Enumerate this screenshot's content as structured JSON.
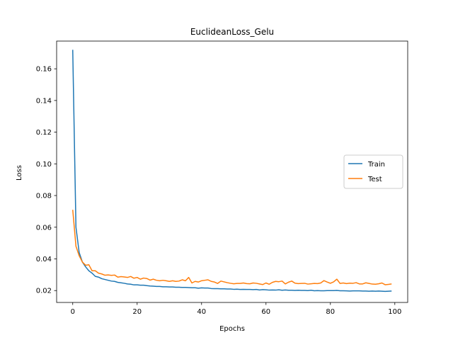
{
  "chart_data": {
    "type": "line",
    "title": "EuclideanLoss_Gelu",
    "xlabel": "Epochs",
    "ylabel": "Loss",
    "xlim": [
      -5,
      104
    ],
    "ylim": [
      0.0125,
      0.1775
    ],
    "xticks": [
      0,
      20,
      40,
      60,
      80,
      100
    ],
    "yticks": [
      0.02,
      0.04,
      0.06,
      0.08,
      0.1,
      0.12,
      0.14,
      0.16
    ],
    "ytick_labels": [
      "0.02",
      "0.04",
      "0.06",
      "0.08",
      "0.10",
      "0.12",
      "0.14",
      "0.16"
    ],
    "grid": false,
    "legend_position": "center-right",
    "series": [
      {
        "name": "Train",
        "color": "#1f77b4",
        "x": [
          0,
          1,
          2,
          3,
          4,
          5,
          6,
          7,
          8,
          9,
          10,
          11,
          12,
          13,
          14,
          15,
          16,
          17,
          18,
          19,
          20,
          21,
          22,
          23,
          24,
          25,
          26,
          27,
          28,
          29,
          30,
          31,
          32,
          33,
          34,
          35,
          36,
          37,
          38,
          39,
          40,
          41,
          42,
          43,
          44,
          45,
          46,
          47,
          48,
          49,
          50,
          51,
          52,
          53,
          54,
          55,
          56,
          57,
          58,
          59,
          60,
          61,
          62,
          63,
          64,
          65,
          66,
          67,
          68,
          69,
          70,
          71,
          72,
          73,
          74,
          75,
          76,
          77,
          78,
          79,
          80,
          81,
          82,
          83,
          84,
          85,
          86,
          87,
          88,
          89,
          90,
          91,
          92,
          93,
          94,
          95,
          96,
          97,
          98,
          99
        ],
        "values": [
          0.172,
          0.06,
          0.044,
          0.038,
          0.035,
          0.0325,
          0.031,
          0.029,
          0.0285,
          0.0275,
          0.027,
          0.0265,
          0.026,
          0.0258,
          0.0252,
          0.0249,
          0.0246,
          0.0242,
          0.024,
          0.0236,
          0.0236,
          0.0234,
          0.0234,
          0.0231,
          0.0229,
          0.0228,
          0.0226,
          0.0226,
          0.0224,
          0.0224,
          0.0223,
          0.0223,
          0.0221,
          0.0221,
          0.022,
          0.022,
          0.0219,
          0.0218,
          0.0218,
          0.0215,
          0.0217,
          0.0216,
          0.0216,
          0.0213,
          0.0212,
          0.0212,
          0.0211,
          0.0211,
          0.021,
          0.021,
          0.0208,
          0.0209,
          0.0207,
          0.0208,
          0.0207,
          0.0207,
          0.0206,
          0.0207,
          0.0204,
          0.0206,
          0.0205,
          0.0203,
          0.0204,
          0.0203,
          0.0205,
          0.0202,
          0.0204,
          0.0202,
          0.0202,
          0.0201,
          0.0202,
          0.0201,
          0.0201,
          0.02,
          0.0202,
          0.0199,
          0.02,
          0.0199,
          0.0199,
          0.02,
          0.02,
          0.02,
          0.0201,
          0.0199,
          0.0199,
          0.0198,
          0.0197,
          0.0198,
          0.0198,
          0.0198,
          0.0197,
          0.0197,
          0.0196,
          0.0197,
          0.0196,
          0.0197,
          0.0196,
          0.0195,
          0.0196,
          0.0197
        ]
      },
      {
        "name": "Test",
        "color": "#ff7f0e",
        "x": [
          0,
          1,
          2,
          3,
          4,
          5,
          6,
          7,
          8,
          9,
          10,
          11,
          12,
          13,
          14,
          15,
          16,
          17,
          18,
          19,
          20,
          21,
          22,
          23,
          24,
          25,
          26,
          27,
          28,
          29,
          30,
          31,
          32,
          33,
          34,
          35,
          36,
          37,
          38,
          39,
          40,
          41,
          42,
          43,
          44,
          45,
          46,
          47,
          48,
          49,
          50,
          51,
          52,
          53,
          54,
          55,
          56,
          57,
          58,
          59,
          60,
          61,
          62,
          63,
          64,
          65,
          66,
          67,
          68,
          69,
          70,
          71,
          72,
          73,
          74,
          75,
          76,
          77,
          78,
          79,
          80,
          81,
          82,
          83,
          84,
          85,
          86,
          87,
          88,
          89,
          90,
          91,
          92,
          93,
          94,
          95,
          96,
          97,
          98,
          99
        ],
        "values": [
          0.071,
          0.048,
          0.042,
          0.038,
          0.036,
          0.0363,
          0.0325,
          0.0325,
          0.031,
          0.0305,
          0.0297,
          0.0299,
          0.0296,
          0.0298,
          0.0285,
          0.0288,
          0.0286,
          0.0283,
          0.0289,
          0.0278,
          0.0283,
          0.0272,
          0.0279,
          0.0276,
          0.0266,
          0.0272,
          0.0265,
          0.0262,
          0.0265,
          0.0262,
          0.0258,
          0.0262,
          0.0258,
          0.026,
          0.0268,
          0.0262,
          0.0283,
          0.0248,
          0.0258,
          0.0254,
          0.0262,
          0.0265,
          0.0268,
          0.0258,
          0.0254,
          0.0245,
          0.026,
          0.0255,
          0.025,
          0.0246,
          0.0243,
          0.0245,
          0.0245,
          0.0248,
          0.0244,
          0.0243,
          0.0248,
          0.0246,
          0.0242,
          0.0238,
          0.0248,
          0.024,
          0.0252,
          0.0258,
          0.0256,
          0.026,
          0.0242,
          0.0253,
          0.026,
          0.0247,
          0.0244,
          0.0245,
          0.0246,
          0.0241,
          0.0243,
          0.0245,
          0.0244,
          0.0248,
          0.0263,
          0.0254,
          0.0246,
          0.0255,
          0.0272,
          0.0245,
          0.0248,
          0.0244,
          0.0247,
          0.0246,
          0.025,
          0.0242,
          0.0242,
          0.0249,
          0.0245,
          0.0241,
          0.024,
          0.0243,
          0.0248,
          0.0237,
          0.0239,
          0.0242
        ]
      }
    ]
  }
}
